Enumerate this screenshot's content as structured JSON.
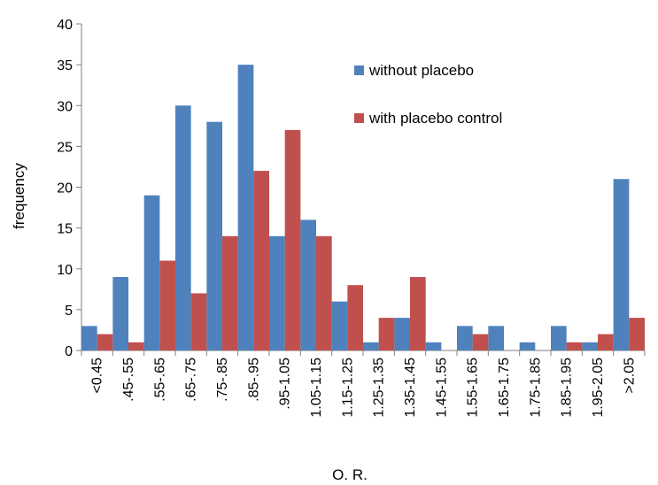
{
  "chart_data": {
    "type": "bar",
    "title": "",
    "xlabel": "O. R.",
    "ylabel": "frequency",
    "ylim": [
      0,
      40
    ],
    "yticks": [
      0,
      5,
      10,
      15,
      20,
      25,
      30,
      35,
      40
    ],
    "grid": false,
    "legend_position": "top-right",
    "categories": [
      "<0.45",
      ".45-.55",
      ".55-.65",
      ".65-.75",
      ".75-.85",
      ".85-.95",
      ".95-1.05",
      "1.05-1.15",
      "1.15-1.25",
      "1.25-1.35",
      "1.35-1.45",
      "1.45-1.55",
      "1.55-1.65",
      "1.65-1.75",
      "1.75-1.85",
      "1.85-1.95",
      "1.95-2.05",
      ">2.05"
    ],
    "series": [
      {
        "name": "without placebo",
        "color": "#4f81bd",
        "values": [
          3,
          9,
          19,
          30,
          28,
          35,
          14,
          16,
          6,
          1,
          4,
          1,
          3,
          3,
          1,
          3,
          1,
          21
        ]
      },
      {
        "name": "with placebo control",
        "color": "#c0504d",
        "values": [
          2,
          1,
          11,
          7,
          14,
          22,
          27,
          14,
          8,
          4,
          9,
          0,
          2,
          0,
          0,
          1,
          2,
          4
        ]
      }
    ]
  }
}
